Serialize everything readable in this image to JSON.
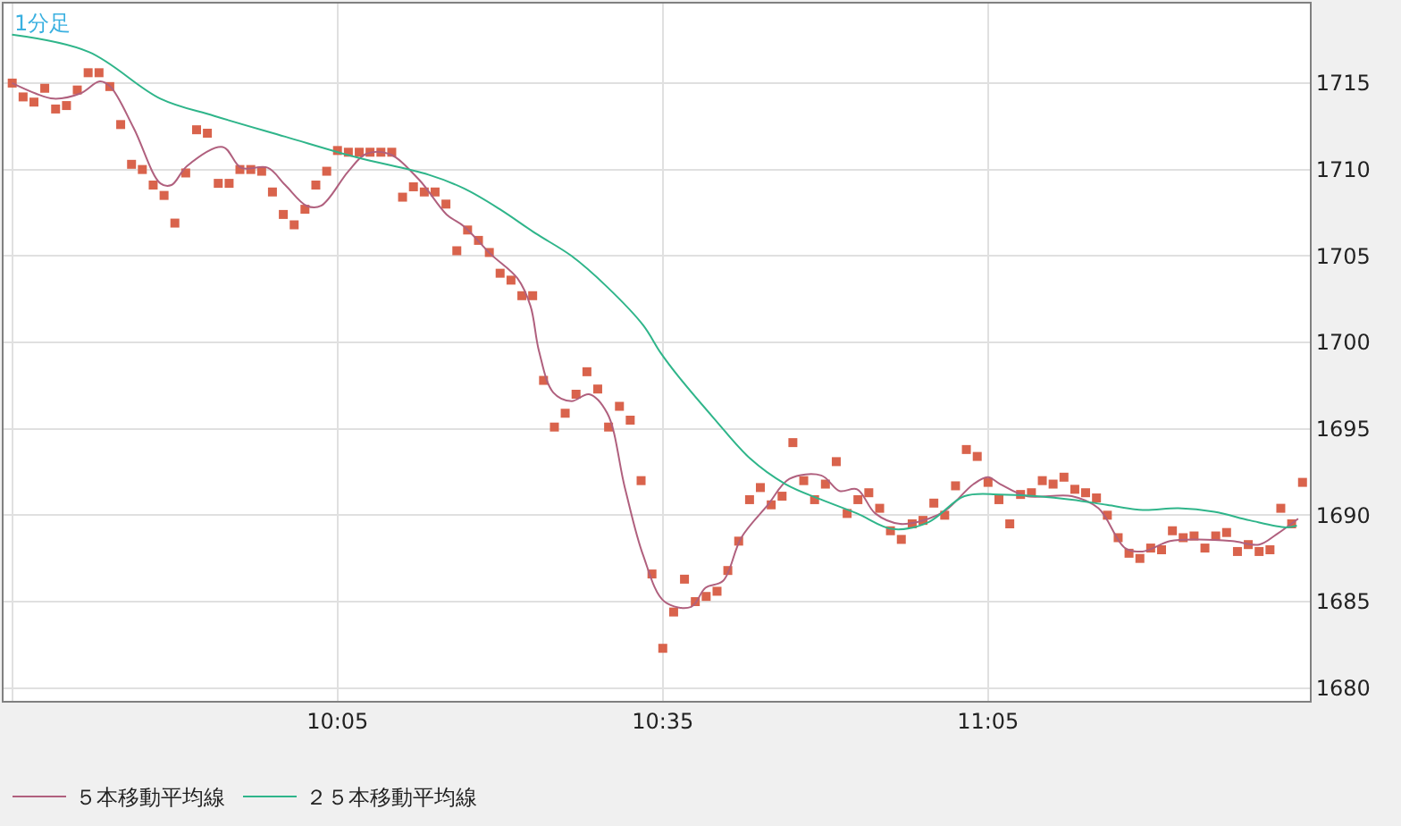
{
  "chart_data": {
    "type": "line",
    "title": "1分足",
    "xlim": [
      9.57,
      11.578
    ],
    "ylim": [
      1679.26,
      1719.6
    ],
    "xticks": [
      {
        "value": 9.5833,
        "label": null
      },
      {
        "value": 10.0833,
        "label": "10:05"
      },
      {
        "value": 10.5833,
        "label": "10:35"
      },
      {
        "value": 11.0833,
        "label": "11:05"
      }
    ],
    "yticks": [
      1680,
      1685,
      1690,
      1695,
      1700,
      1705,
      1710,
      1715
    ],
    "grid": true,
    "legend": "bottom left",
    "series": [
      {
        "type": "scatter",
        "marker": "square",
        "color": "#d9634c",
        "x": [
          9.5833,
          9.6,
          9.6167,
          9.6333,
          9.65,
          9.6667,
          9.6833,
          9.7,
          9.7167,
          9.7333,
          9.75,
          9.7667,
          9.7833,
          9.8,
          9.8167,
          9.8333,
          9.85,
          9.8667,
          9.8833,
          9.9,
          9.9167,
          9.9333,
          9.95,
          9.9667,
          9.9833,
          10,
          10.0167,
          10.0333,
          10.05,
          10.0667,
          10.0833,
          10.1,
          10.1167,
          10.1333,
          10.15,
          10.1667,
          10.1833,
          10.2,
          10.2167,
          10.2333,
          10.25,
          10.2667,
          10.2833,
          10.3,
          10.3167,
          10.3333,
          10.35,
          10.3667,
          10.3833,
          10.4,
          10.4167,
          10.4333,
          10.45,
          10.4667,
          10.4833,
          10.5,
          10.5167,
          10.5333,
          10.55,
          10.5667,
          10.5833,
          10.6,
          10.6167,
          10.6333,
          10.65,
          10.6667,
          10.6833,
          10.7,
          10.7167,
          10.7333,
          10.75,
          10.7667,
          10.7833,
          10.8,
          10.8167,
          10.8333,
          10.85,
          10.8667,
          10.8833,
          10.9,
          10.9167,
          10.9333,
          10.95,
          10.9667,
          10.9833,
          11,
          11.0167,
          11.0333,
          11.05,
          11.0667,
          11.0833,
          11.1,
          11.1167,
          11.1333,
          11.15,
          11.1667,
          11.1833,
          11.2,
          11.2167,
          11.2333,
          11.25,
          11.2667,
          11.2833,
          11.3,
          11.3167,
          11.3333,
          11.35,
          11.3667,
          11.3833,
          11.4,
          11.4167,
          11.4333,
          11.45,
          11.4667,
          11.4833,
          11.5,
          11.5167,
          11.5333,
          11.55,
          11.5667
        ],
        "values": [
          1715.0,
          1714.2,
          1713.9,
          1714.7,
          1713.5,
          1713.7,
          1714.6,
          1715.6,
          1715.6,
          1714.8,
          1712.6,
          1710.3,
          1710.0,
          1709.1,
          1708.5,
          1706.9,
          1709.8,
          1712.3,
          1712.1,
          1709.2,
          1709.2,
          1710.0,
          1710.0,
          1709.9,
          1708.7,
          1707.4,
          1706.8,
          1707.7,
          1709.1,
          1709.9,
          1711.1,
          1711.0,
          1711.0,
          1711.0,
          1711.0,
          1711.0,
          1708.4,
          1709.0,
          1708.7,
          1708.7,
          1708.0,
          1705.3,
          1706.5,
          1705.9,
          1705.2,
          1704.0,
          1703.6,
          1702.7,
          1702.7,
          1697.8,
          1695.1,
          1695.9,
          1697.0,
          1698.3,
          1697.3,
          1695.1,
          1696.3,
          1695.5,
          1692.0,
          1686.6,
          1682.3,
          1684.4,
          1686.3,
          1685.0,
          1685.3,
          1685.6,
          1686.8,
          1688.5,
          1690.9,
          1691.6,
          1690.6,
          1691.1,
          1694.2,
          1692.0,
          1690.9,
          1691.8,
          1693.1,
          1690.1,
          1690.9,
          1691.3,
          1690.4,
          1689.1,
          1688.6,
          1689.5,
          1689.7,
          1690.7,
          1690.0,
          1691.7,
          1693.8,
          1693.4,
          1691.9,
          1690.9,
          1689.5,
          1691.2,
          1691.3,
          1692.0,
          1691.8,
          1692.2,
          1691.5,
          1691.3,
          1691.0,
          1690.0,
          1688.7,
          1687.8,
          1687.5,
          1688.1,
          1688.0,
          1689.1,
          1688.7,
          1688.8,
          1688.1,
          1688.8,
          1689.0,
          1687.9,
          1688.3,
          1687.9,
          1688.0,
          1690.4,
          1689.5,
          1691.9
        ]
      },
      {
        "name": "５本移動平均線",
        "color": "#b0607e",
        "marker": "none",
        "line_style": "solid",
        "x": [
          9.583,
          9.619,
          9.647,
          9.688,
          9.718,
          9.734,
          9.77,
          9.811,
          9.828,
          9.852,
          9.907,
          9.935,
          9.976,
          10.003,
          10.036,
          10.058,
          10.1,
          10.127,
          10.163,
          10.209,
          10.251,
          10.278,
          10.319,
          10.36,
          10.38,
          10.393,
          10.415,
          10.443,
          10.47,
          10.498,
          10.525,
          10.553,
          10.586,
          10.627,
          10.649,
          10.676,
          10.704,
          10.745,
          10.778,
          10.827,
          10.855,
          10.882,
          10.91,
          10.948,
          10.992,
          11.019,
          11.061,
          11.083,
          11.102,
          11.143,
          11.212,
          11.253,
          11.294,
          11.321,
          11.363,
          11.404,
          11.459,
          11.5,
          11.527,
          11.56
        ],
        "values": [
          1715.0,
          1714.4,
          1714.1,
          1714.4,
          1715.1,
          1714.8,
          1712.4,
          1709.2,
          1709.1,
          1710.2,
          1711.3,
          1710.1,
          1710.1,
          1709.1,
          1707.9,
          1707.9,
          1709.9,
          1710.9,
          1710.9,
          1709.4,
          1707.4,
          1706.7,
          1705.1,
          1703.7,
          1702.1,
          1699.5,
          1697.1,
          1696.6,
          1697.0,
          1695.9,
          1691.6,
          1687.7,
          1685.0,
          1684.7,
          1685.8,
          1686.2,
          1688.7,
          1690.6,
          1692.1,
          1692.3,
          1691.4,
          1691.5,
          1690.1,
          1689.5,
          1689.8,
          1690.3,
          1691.8,
          1692.2,
          1691.8,
          1691.1,
          1691.1,
          1690.4,
          1688.1,
          1687.9,
          1688.5,
          1688.6,
          1688.5,
          1688.3,
          1688.9,
          1689.8
        ]
      },
      {
        "name": "２５本移動平均線",
        "color": "#2fb58a",
        "marker": "none",
        "line_style": "solid",
        "x": [
          9.583,
          9.701,
          9.811,
          9.894,
          10.003,
          10.113,
          10.223,
          10.278,
          10.333,
          10.388,
          10.443,
          10.498,
          10.553,
          10.58,
          10.608,
          10.662,
          10.717,
          10.772,
          10.827,
          10.882,
          10.937,
          10.992,
          11.047,
          11.102,
          11.157,
          11.212,
          11.266,
          11.321,
          11.376,
          11.431,
          11.486,
          11.541,
          11.558
        ],
        "values": [
          1717.8,
          1716.8,
          1714.1,
          1713.1,
          1711.9,
          1710.7,
          1709.7,
          1708.9,
          1707.7,
          1706.3,
          1705.0,
          1703.2,
          1701.0,
          1699.4,
          1698.0,
          1695.6,
          1693.3,
          1691.8,
          1690.9,
          1690.1,
          1689.2,
          1689.6,
          1691.1,
          1691.2,
          1691.1,
          1690.9,
          1690.6,
          1690.3,
          1690.4,
          1690.2,
          1689.7,
          1689.3,
          1689.4
        ]
      }
    ]
  }
}
